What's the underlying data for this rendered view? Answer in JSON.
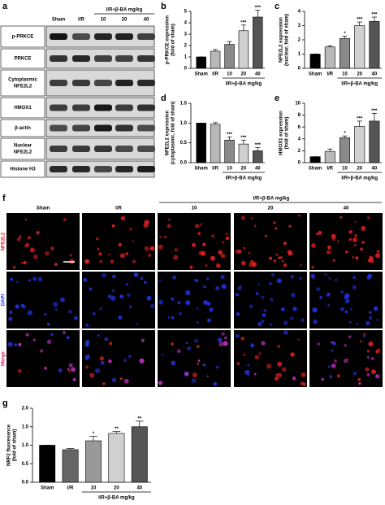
{
  "figure": {
    "panel_a": {
      "panel": "a",
      "group_label": "I/R+β-BA mg/kg",
      "columns": [
        "Sham",
        "I/R",
        "10",
        "20",
        "40"
      ],
      "rows": [
        [
          "p-PRKCE"
        ],
        [
          "PRKCE"
        ],
        [
          "Cytoplasmic",
          "NFE2L2"
        ],
        [
          "HMOX1"
        ],
        [
          "β-actin"
        ],
        [
          "Nuclear",
          "NFE2L2"
        ],
        [
          "Histone H3"
        ]
      ]
    },
    "panel_f": {
      "panel": "f",
      "group_label": "I/R+β-BA mg/kg",
      "columns": [
        "Sham",
        "I/R",
        "10",
        "20",
        "40"
      ],
      "rows": [
        "NFE2L2",
        "DAPI",
        "Merge"
      ]
    }
  },
  "chart_data": [
    {
      "type": "bar",
      "panel": "b",
      "ylabel": [
        "p-PRKCE expression",
        "(fold of sham)"
      ],
      "categories": [
        "Sham",
        "I/R",
        "10",
        "20",
        "40"
      ],
      "group_label": "I/R+β-BA mg/kg",
      "values": [
        1,
        1.5,
        2.1,
        3.3,
        4.5
      ],
      "errors": [
        0,
        0.15,
        0.25,
        0.5,
        0.6
      ],
      "significance": [
        null,
        null,
        null,
        "***",
        "***"
      ],
      "colors": [
        "#000000",
        "#b8b8b8",
        "#8a8a8a",
        "#d0d0d0",
        "#555555"
      ],
      "ylim": [
        0,
        5
      ],
      "yticks": [
        0,
        1,
        2,
        3,
        4,
        5
      ]
    },
    {
      "type": "bar",
      "panel": "c",
      "ylabel": [
        "NFE2L2 expression",
        "(nuclear, fold of sham)"
      ],
      "categories": [
        "Sham",
        "I/R",
        "10",
        "20",
        "40"
      ],
      "group_label": "I/R+β-BA mg/kg",
      "values": [
        1,
        1.5,
        2.1,
        3.0,
        3.3
      ],
      "errors": [
        0,
        0.08,
        0.15,
        0.25,
        0.3
      ],
      "significance": [
        null,
        null,
        "*",
        "***",
        "***"
      ],
      "colors": [
        "#000000",
        "#b8b8b8",
        "#8a8a8a",
        "#d0d0d0",
        "#555555"
      ],
      "ylim": [
        0,
        4
      ],
      "yticks": [
        0,
        1,
        2,
        3,
        4
      ]
    },
    {
      "type": "bar",
      "panel": "d",
      "ylabel": [
        "NFE2L2 expression",
        "(cytoplasmic, fold of sham)"
      ],
      "categories": [
        "Sham",
        "I/R",
        "10",
        "20",
        "40"
      ],
      "group_label": "I/R+β-BA mg/kg",
      "values": [
        1,
        0.97,
        0.57,
        0.47,
        0.3
      ],
      "errors": [
        0,
        0.04,
        0.08,
        0.1,
        0.08
      ],
      "significance": [
        null,
        null,
        "***",
        "***",
        "***"
      ],
      "colors": [
        "#000000",
        "#b8b8b8",
        "#8a8a8a",
        "#d0d0d0",
        "#555555"
      ],
      "ylim": [
        0,
        1.5
      ],
      "yticks": [
        {
          "value": 0,
          "label": "0.0"
        },
        {
          "value": 0.5,
          "label": "0.5"
        },
        {
          "value": 1,
          "label": "1.0"
        },
        {
          "value": 1.5,
          "label": "1.5"
        }
      ]
    },
    {
      "type": "bar",
      "panel": "e",
      "ylabel": [
        "HMOX1 expression",
        "(fold of sham)"
      ],
      "categories": [
        "Sham",
        "I/R",
        "10",
        "20",
        "40"
      ],
      "group_label": "I/R+β-BA mg/kg",
      "values": [
        1,
        1.9,
        4.2,
        6.1,
        7.0
      ],
      "errors": [
        0,
        0.4,
        0.3,
        0.9,
        1.3
      ],
      "significance": [
        null,
        null,
        "*",
        "***",
        "***"
      ],
      "colors": [
        "#000000",
        "#b8b8b8",
        "#8a8a8a",
        "#d0d0d0",
        "#555555"
      ],
      "ylim": [
        0,
        10
      ],
      "yticks": [
        0,
        2,
        4,
        6,
        8,
        10
      ]
    },
    {
      "type": "bar",
      "panel": "g",
      "ylabel": [
        "NRF2 fluoresence",
        "(fold of sham)"
      ],
      "categories": [
        "Sham",
        "I/R",
        "10",
        "20",
        "40"
      ],
      "group_label": "I/R+β-BA mg/kg",
      "values": [
        1.0,
        0.88,
        1.12,
        1.32,
        1.5
      ],
      "errors": [
        0,
        0.03,
        0.12,
        0.05,
        0.15
      ],
      "significance": [
        null,
        null,
        "*",
        "**",
        "**"
      ],
      "colors": [
        "#000000",
        "#666666",
        "#999999",
        "#d0d0d0",
        "#555555"
      ],
      "ylim": [
        0,
        2
      ],
      "yticks": [
        {
          "value": 0,
          "label": "0.0"
        },
        {
          "value": 0.5,
          "label": "0.5"
        },
        {
          "value": 1,
          "label": "1.0"
        },
        {
          "value": 1.5,
          "label": "1.5"
        },
        {
          "value": 2,
          "label": "2.0"
        }
      ]
    }
  ]
}
